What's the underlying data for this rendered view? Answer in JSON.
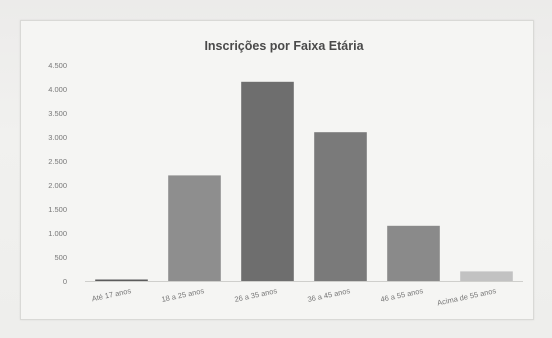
{
  "chart_data": {
    "type": "bar",
    "title": "Inscrições por Faixa Etária",
    "categories": [
      "Até 17 anos",
      "18 a 25 anos",
      "26 a 35 anos",
      "36 a 45 anos",
      "46 a 55 anos",
      "Acima de 55 anos"
    ],
    "values": [
      30,
      2200,
      4150,
      3100,
      1150,
      200
    ],
    "ylim": [
      0,
      4500
    ],
    "yticks": [
      0,
      500,
      1000,
      1500,
      2000,
      2500,
      3000,
      3500,
      4000,
      4500
    ],
    "ytick_labels": [
      "0",
      "500",
      "1.000",
      "1.500",
      "2.000",
      "2.500",
      "3.000",
      "3.500",
      "4.000",
      "4.500"
    ],
    "bar_colors": [
      "#5c5c5c",
      "#8e8e8e",
      "#6e6e6e",
      "#7a7a7a",
      "#8a8a8a",
      "#c2c2c2"
    ],
    "grid": false,
    "legend": "none"
  }
}
